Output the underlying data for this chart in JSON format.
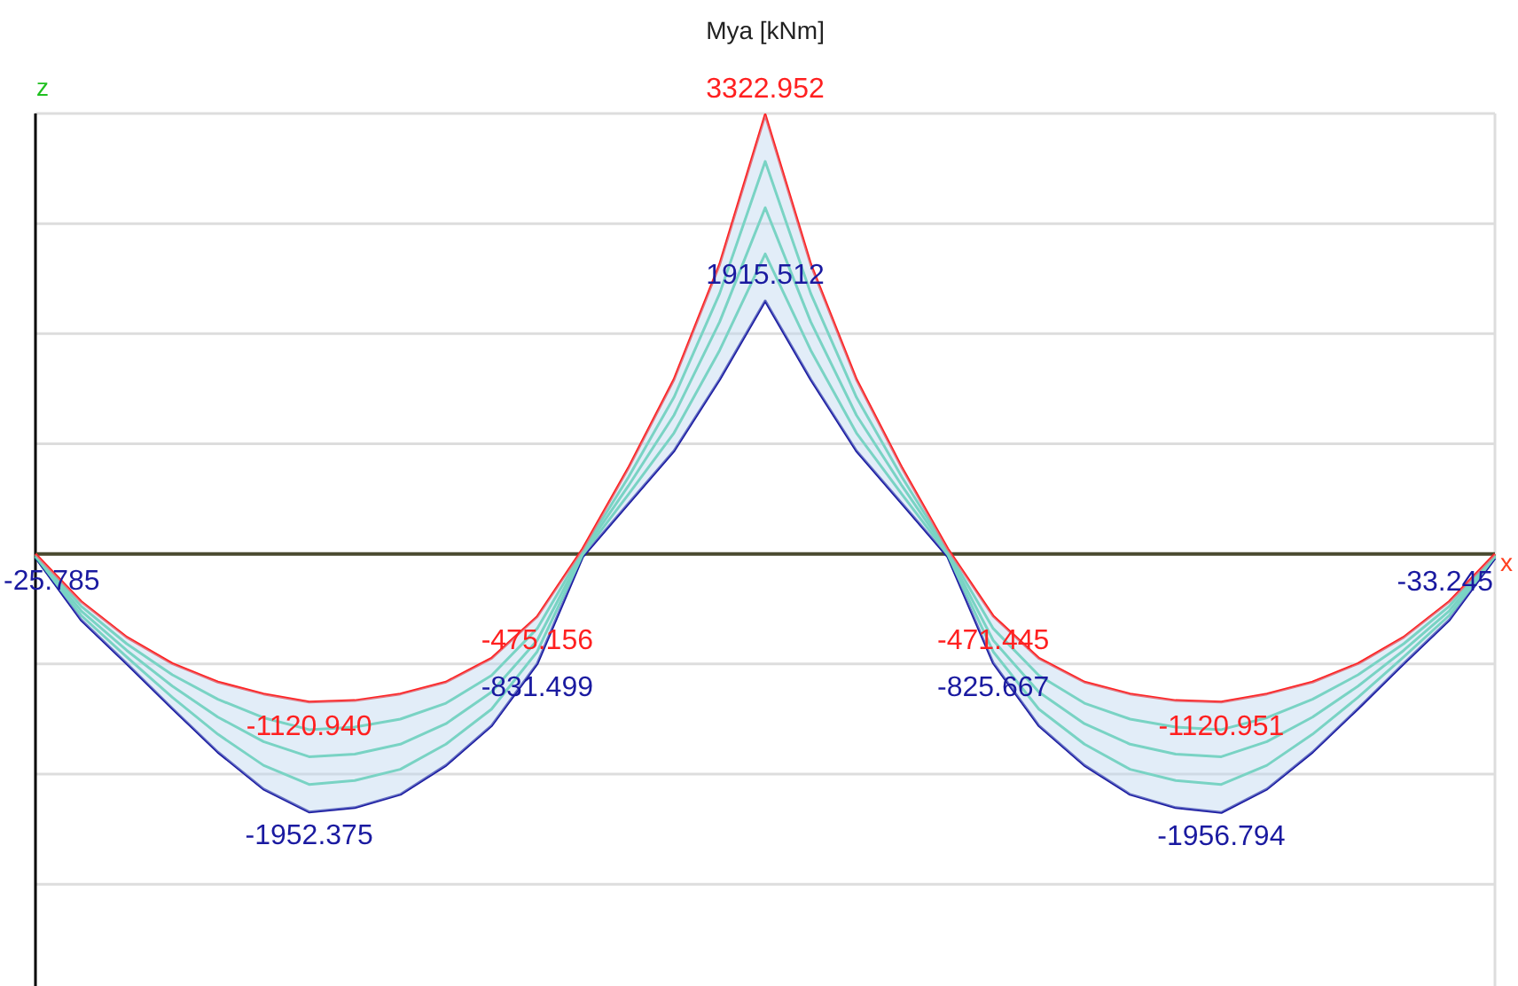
{
  "chart_data": {
    "type": "line",
    "title": "Mya [kNm]",
    "xlabel": "x",
    "ylabel": "z",
    "categories": [
      null,
      null,
      null,
      null,
      null,
      null,
      null,
      null,
      null,
      null,
      null,
      null,
      null,
      null,
      null,
      null,
      null,
      null,
      null,
      null,
      null,
      null,
      null,
      null,
      null,
      null,
      null,
      null,
      null,
      null,
      null,
      null,
      null
    ],
    "ylim": [
      -3270,
      3333
    ],
    "yticks": [
      {
        "value": -2500,
        "label": null
      },
      {
        "value": -1667,
        "label": null
      },
      {
        "value": -833,
        "label": null
      },
      {
        "value": 0,
        "label": null
      },
      {
        "value": 833,
        "label": null
      },
      {
        "value": 1667,
        "label": null
      },
      {
        "value": 2500,
        "label": null
      },
      {
        "value": 3333,
        "label": null
      }
    ],
    "grid": "y",
    "legend": false,
    "marker": "none",
    "line_style": "solid",
    "series": [
      {
        "color": "#ff2020",
        "values": [
          0,
          -360,
          -630,
          -830,
          -970,
          -1060,
          -1120.94,
          -1110,
          -1060,
          -970,
          -790,
          -475.156,
          40,
          650,
          1320,
          2190,
          3322.952,
          2190,
          1320,
          650,
          40,
          -471.445,
          -790,
          -970,
          -1060,
          -1110,
          -1120.951,
          -1060,
          -970,
          -830,
          -630,
          -360,
          0
        ],
        "value_labels": [
          null,
          null,
          null,
          null,
          null,
          null,
          "-1120.940",
          null,
          null,
          null,
          null,
          "-475.156",
          null,
          null,
          null,
          null,
          "3322.952",
          null,
          null,
          null,
          null,
          "-471.445",
          null,
          null,
          null,
          null,
          "-1120.951",
          null,
          null,
          null,
          null,
          null,
          null
        ]
      },
      {
        "color": "#40d0a0",
        "values": [
          -5,
          -395,
          -680,
          -915,
          -1100,
          -1240,
          -1330,
          -1310,
          -1250,
          -1130,
          -920,
          -565,
          25,
          580,
          1185,
          1970,
          2970,
          1970,
          1185,
          580,
          25,
          -565,
          -920,
          -1130,
          -1250,
          -1310,
          -1330,
          -1240,
          -1100,
          -915,
          -680,
          -395,
          -5
        ]
      },
      {
        "color": "#40d0a0",
        "values": [
          -15,
          -430,
          -730,
          -1000,
          -1235,
          -1420,
          -1535,
          -1515,
          -1440,
          -1285,
          -1045,
          -655,
          10,
          515,
          1050,
          1755,
          2620,
          1755,
          1050,
          515,
          10,
          -655,
          -1045,
          -1285,
          -1440,
          -1515,
          -1535,
          -1420,
          -1235,
          -1000,
          -730,
          -430,
          -15
        ],
        "upper": [
          0,
          -360,
          -630,
          -830,
          -970,
          -1060,
          -1120.94,
          -1110,
          -1060,
          -970,
          -790,
          -475.156,
          40,
          650,
          1320,
          2190,
          3322.952,
          2190,
          1320,
          650,
          40,
          -471.445,
          -790,
          -970,
          -1060,
          -1110,
          -1120.951,
          -1060,
          -970,
          -830,
          -630,
          -360,
          0
        ],
        "lower": [
          -25.785,
          -500,
          -830,
          -1170,
          -1500,
          -1780,
          -1952.375,
          -1920,
          -1820,
          -1600,
          -1300,
          -831.499,
          -20,
          380,
          780,
          1320,
          1915.512,
          1320,
          780,
          380,
          -20,
          -825.667,
          -1300,
          -1600,
          -1820,
          -1920,
          -1956.794,
          -1780,
          -1500,
          -1170,
          -830,
          -500,
          -33.245
        ]
      },
      {
        "color": "#40d0a0",
        "values": [
          -20,
          -465,
          -780,
          -1085,
          -1365,
          -1600,
          -1745,
          -1715,
          -1630,
          -1440,
          -1175,
          -740,
          -5,
          450,
          915,
          1540,
          2270,
          1540,
          915,
          450,
          -5,
          -740,
          -1175,
          -1440,
          -1630,
          -1715,
          -1745,
          -1600,
          -1365,
          -1085,
          -780,
          -465,
          -20
        ]
      },
      {
        "color": "#1a1aa0",
        "values": [
          -25.785,
          -500,
          -830,
          -1170,
          -1500,
          -1780,
          -1952.375,
          -1920,
          -1820,
          -1600,
          -1300,
          -831.499,
          -20,
          380,
          780,
          1320,
          1915.512,
          1320,
          780,
          380,
          -20,
          -825.667,
          -1300,
          -1600,
          -1820,
          -1920,
          -1956.794,
          -1780,
          -1500,
          -1170,
          -830,
          -500,
          -33.245
        ],
        "value_labels": [
          "-25.785",
          null,
          null,
          null,
          null,
          null,
          "-1952.375",
          null,
          null,
          null,
          null,
          "-831.499",
          null,
          null,
          null,
          null,
          "1915.512",
          null,
          null,
          null,
          null,
          "-825.667",
          null,
          null,
          null,
          null,
          "-1956.794",
          null,
          null,
          null,
          null,
          null,
          "-33.245"
        ]
      }
    ]
  }
}
